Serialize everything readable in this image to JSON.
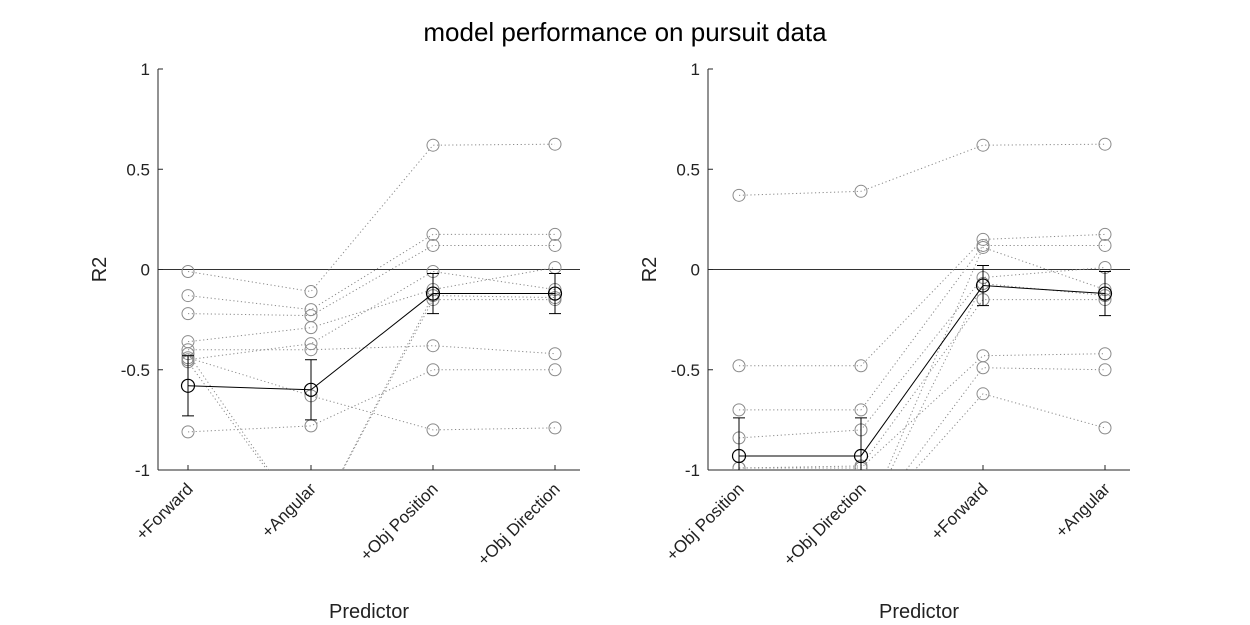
{
  "figure": {
    "title": "model performance on pursuit data"
  },
  "chart_data": [
    {
      "type": "scatter",
      "title": "",
      "xlabel": "Predictor",
      "ylabel": "R2",
      "ylim": [
        -1,
        1
      ],
      "yticks": [
        "-1",
        "-0.5",
        "0",
        "0.5",
        "1"
      ],
      "categories": [
        "+Forward",
        "+Angular",
        "+Obj Position",
        "+Obj Direction"
      ],
      "zero_line": true,
      "subjects": [
        [
          -0.01,
          -0.11,
          0.62,
          0.625
        ],
        [
          -0.13,
          -0.2,
          0.175,
          0.175
        ],
        [
          -0.22,
          -0.23,
          0.12,
          0.12
        ],
        [
          -0.36,
          -0.29,
          -0.1,
          0.01
        ],
        [
          -0.45,
          -0.37,
          -0.01,
          -0.1
        ],
        [
          -0.4,
          -0.4,
          -0.38,
          -0.42
        ],
        [
          -0.44,
          -0.63,
          -0.8,
          -0.79
        ],
        [
          -0.81,
          -0.78,
          -0.5,
          -0.5
        ],
        [
          -0.46,
          -1.3,
          -0.13,
          -0.14
        ],
        [
          -0.42,
          -1.3,
          -0.15,
          -0.15
        ]
      ],
      "mean": [
        -0.58,
        -0.6,
        -0.12,
        -0.12
      ],
      "error": [
        0.15,
        0.15,
        0.1,
        0.1
      ]
    },
    {
      "type": "scatter",
      "title": "",
      "xlabel": "Predictor",
      "ylabel": "R2",
      "ylim": [
        -1,
        1
      ],
      "yticks": [
        "-1",
        "-0.5",
        "0",
        "0.5",
        "1"
      ],
      "categories": [
        "+Obj Position",
        "+Obj Direction",
        "+Forward",
        "+Angular"
      ],
      "zero_line": true,
      "subjects": [
        [
          0.37,
          0.39,
          0.62,
          0.625
        ],
        [
          -0.48,
          -0.48,
          0.15,
          0.175
        ],
        [
          -0.7,
          -0.7,
          0.12,
          0.12
        ],
        [
          -0.84,
          -0.8,
          -0.04,
          0.01
        ],
        [
          -0.99,
          -0.98,
          -0.15,
          -0.15
        ],
        [
          -0.99,
          -0.99,
          -0.43,
          -0.42
        ],
        [
          -1.3,
          -1.3,
          -0.49,
          -0.5
        ],
        [
          -1.3,
          -1.3,
          -0.62,
          -0.79
        ],
        [
          -1.3,
          -1.3,
          0.11,
          -0.1
        ],
        [
          -1.3,
          -1.3,
          -0.07,
          -0.13
        ]
      ],
      "mean": [
        -0.93,
        -0.93,
        -0.08,
        -0.12
      ],
      "error": [
        0.19,
        0.19,
        0.1,
        0.11
      ]
    }
  ]
}
